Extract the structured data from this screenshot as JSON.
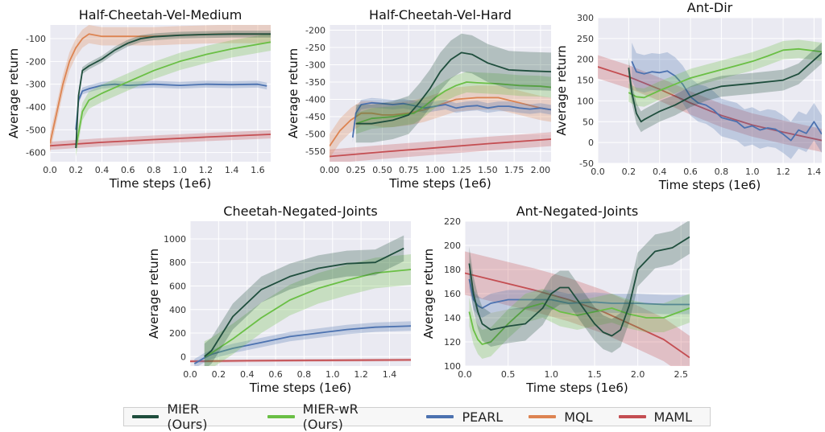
{
  "legend": [
    {
      "label": "MIER (Ours)",
      "color": "#1f4e3d"
    },
    {
      "label": "MIER-wR (Ours)",
      "color": "#6abf45"
    },
    {
      "label": "PEARL",
      "color": "#4c72b0"
    },
    {
      "label": "MQL",
      "color": "#dd8452"
    },
    {
      "label": "MAML",
      "color": "#c44e52"
    }
  ],
  "chart_data": [
    {
      "type": "line",
      "title": "Half-Cheetah-Vel-Medium",
      "xlabel": "Time steps (1e6)",
      "ylabel": "Average return",
      "xlim": [
        0.0,
        1.7
      ],
      "ylim": [
        -640,
        -40
      ],
      "xticks": [
        0.0,
        0.2,
        0.4,
        0.6,
        0.8,
        1.0,
        1.2,
        1.4,
        1.6
      ],
      "xticklabels": [
        "0.0",
        "0.2",
        "0.4",
        "0.6",
        "0.8",
        "1.0",
        "1.2",
        "1.4",
        "1.6"
      ],
      "yticks": [
        -600,
        -500,
        -400,
        -300,
        -200,
        -100
      ],
      "yticklabels": [
        "-600",
        "-500",
        "-400",
        "-300",
        "-200",
        "-100"
      ],
      "grid": true,
      "series": [
        {
          "name": "MAML",
          "color": "#c44e52",
          "x": [
            0.0,
            0.4,
            0.8,
            1.2,
            1.7
          ],
          "y": [
            -570,
            -555,
            -543,
            -532,
            -520
          ],
          "band": 18
        },
        {
          "name": "MQL",
          "color": "#dd8452",
          "x": [
            0.0,
            0.05,
            0.1,
            0.15,
            0.2,
            0.25,
            0.3,
            0.4,
            0.6,
            0.8,
            1.0,
            1.3,
            1.7
          ],
          "y": [
            -560,
            -430,
            -300,
            -200,
            -140,
            -100,
            -80,
            -90,
            -90,
            -90,
            -85,
            -80,
            -80
          ],
          "band": 40
        },
        {
          "name": "PEARL",
          "color": "#4c72b0",
          "x": [
            0.2,
            0.22,
            0.25,
            0.3,
            0.4,
            0.5,
            0.6,
            0.8,
            1.0,
            1.2,
            1.4,
            1.6,
            1.67
          ],
          "y": [
            -500,
            -370,
            -330,
            -320,
            -305,
            -300,
            -305,
            -300,
            -305,
            -300,
            -302,
            -300,
            -308
          ],
          "band": 15
        },
        {
          "name": "MIER-wR (Ours)",
          "color": "#6abf45",
          "x": [
            0.2,
            0.25,
            0.3,
            0.4,
            0.6,
            0.8,
            1.0,
            1.2,
            1.4,
            1.7
          ],
          "y": [
            -580,
            -420,
            -370,
            -340,
            -290,
            -240,
            -200,
            -170,
            -145,
            -115
          ],
          "band": 38
        },
        {
          "name": "MIER (Ours)",
          "color": "#1f4e3d",
          "x": [
            0.2,
            0.22,
            0.25,
            0.3,
            0.4,
            0.5,
            0.6,
            0.7,
            0.8,
            1.0,
            1.2,
            1.4,
            1.7
          ],
          "y": [
            -580,
            -350,
            -240,
            -220,
            -190,
            -150,
            -120,
            -100,
            -92,
            -85,
            -82,
            -80,
            -80
          ],
          "band": 15
        }
      ]
    },
    {
      "type": "line",
      "title": "Half-Cheetah-Vel-Hard",
      "xlabel": "Time steps (1e6)",
      "ylabel": "Average return",
      "xlim": [
        0.0,
        2.1
      ],
      "ylim": [
        -580,
        -185
      ],
      "xticks": [
        0.0,
        0.25,
        0.5,
        0.75,
        1.0,
        1.25,
        1.5,
        1.75,
        2.0
      ],
      "xticklabels": [
        "0.00",
        "0.25",
        "0.50",
        "0.75",
        "1.00",
        "1.25",
        "1.50",
        "1.75",
        "2.00"
      ],
      "yticks": [
        -550,
        -500,
        -450,
        -400,
        -350,
        -300,
        -250,
        -200
      ],
      "yticklabels": [
        "-550",
        "-500",
        "-450",
        "-400",
        "-350",
        "-300",
        "-250",
        "-200"
      ],
      "grid": true,
      "series": [
        {
          "name": "MAML",
          "color": "#c44e52",
          "x": [
            0.0,
            0.5,
            1.0,
            1.5,
            2.1
          ],
          "y": [
            -565,
            -552,
            -540,
            -528,
            -515
          ],
          "band": 20
        },
        {
          "name": "MQL",
          "color": "#dd8452",
          "x": [
            0.0,
            0.1,
            0.2,
            0.3,
            0.4,
            0.5,
            0.6,
            0.75,
            0.9,
            1.0,
            1.2,
            1.4,
            1.6,
            1.8,
            2.0,
            2.1
          ],
          "y": [
            -535,
            -490,
            -460,
            -440,
            -440,
            -445,
            -445,
            -440,
            -430,
            -420,
            -400,
            -395,
            -395,
            -410,
            -425,
            -430
          ],
          "band": 35
        },
        {
          "name": "PEARL",
          "color": "#4c72b0",
          "x": [
            0.22,
            0.25,
            0.3,
            0.4,
            0.5,
            0.6,
            0.7,
            0.8,
            0.9,
            1.0,
            1.1,
            1.2,
            1.3,
            1.4,
            1.5,
            1.6,
            1.7,
            1.8,
            1.9,
            2.0,
            2.1
          ],
          "y": [
            -510,
            -440,
            -415,
            -410,
            -412,
            -415,
            -412,
            -418,
            -425,
            -420,
            -415,
            -425,
            -420,
            -418,
            -425,
            -420,
            -420,
            -425,
            -428,
            -425,
            -430
          ],
          "band": 14
        },
        {
          "name": "MIER-wR (Ours)",
          "color": "#6abf45",
          "x": [
            0.25,
            0.4,
            0.6,
            0.8,
            0.9,
            1.0,
            1.1,
            1.2,
            1.3,
            1.4,
            1.6,
            1.8,
            2.0,
            2.1
          ],
          "y": [
            -470,
            -455,
            -450,
            -440,
            -420,
            -395,
            -375,
            -360,
            -350,
            -352,
            -355,
            -360,
            -362,
            -365
          ],
          "band": 30
        },
        {
          "name": "MIER (Ours)",
          "color": "#1f4e3d",
          "x": [
            0.25,
            0.4,
            0.6,
            0.75,
            0.85,
            0.95,
            1.05,
            1.15,
            1.25,
            1.35,
            1.5,
            1.7,
            1.9,
            2.1
          ],
          "y": [
            -470,
            -470,
            -460,
            -445,
            -410,
            -370,
            -320,
            -285,
            -265,
            -270,
            -295,
            -315,
            -318,
            -320
          ],
          "band": 55
        }
      ]
    },
    {
      "type": "line",
      "title": "Ant-Dir",
      "xlabel": "Time steps (1e6)",
      "ylabel": "Average return",
      "xlim": [
        0.0,
        1.45
      ],
      "ylim": [
        -50,
        300
      ],
      "xticks": [
        0.0,
        0.2,
        0.4,
        0.6,
        0.8,
        1.0,
        1.2,
        1.4
      ],
      "xticklabels": [
        "0.0",
        "0.2",
        "0.4",
        "0.6",
        "0.8",
        "1.0",
        "1.2",
        "1.4"
      ],
      "yticks": [
        -50,
        0,
        50,
        100,
        150,
        200,
        250,
        300
      ],
      "yticklabels": [
        "-50",
        "0",
        "50",
        "100",
        "150",
        "200",
        "250",
        "300"
      ],
      "grid": true,
      "series": [
        {
          "name": "MAML",
          "color": "#c44e52",
          "x": [
            0.0,
            0.2,
            0.4,
            0.6,
            0.8,
            1.0,
            1.2,
            1.45
          ],
          "y": [
            182,
            158,
            128,
            95,
            65,
            42,
            25,
            5
          ],
          "band": 28
        },
        {
          "name": "PEARL",
          "color": "#4c72b0",
          "x": [
            0.22,
            0.25,
            0.3,
            0.35,
            0.4,
            0.45,
            0.5,
            0.55,
            0.6,
            0.65,
            0.7,
            0.75,
            0.8,
            0.85,
            0.9,
            0.95,
            1.0,
            1.05,
            1.1,
            1.15,
            1.2,
            1.25,
            1.3,
            1.35,
            1.4,
            1.45
          ],
          "y": [
            195,
            170,
            165,
            170,
            168,
            172,
            160,
            140,
            110,
            95,
            90,
            78,
            60,
            55,
            50,
            35,
            40,
            30,
            35,
            32,
            20,
            5,
            30,
            22,
            50,
            20
          ],
          "band": 45
        },
        {
          "name": "MIER-wR (Ours)",
          "color": "#6abf45",
          "x": [
            0.2,
            0.25,
            0.3,
            0.4,
            0.5,
            0.6,
            0.7,
            0.8,
            0.9,
            1.0,
            1.1,
            1.2,
            1.3,
            1.45
          ],
          "y": [
            120,
            110,
            108,
            125,
            140,
            155,
            165,
            175,
            185,
            195,
            208,
            222,
            225,
            218
          ],
          "band": 22
        },
        {
          "name": "MIER (Ours)",
          "color": "#1f4e3d",
          "x": [
            0.2,
            0.22,
            0.25,
            0.28,
            0.3,
            0.35,
            0.4,
            0.5,
            0.6,
            0.7,
            0.8,
            1.0,
            1.2,
            1.3,
            1.45
          ],
          "y": [
            180,
            120,
            70,
            50,
            55,
            65,
            75,
            90,
            110,
            125,
            135,
            142,
            150,
            165,
            215
          ],
          "band": 25
        }
      ]
    },
    {
      "type": "line",
      "title": "Cheetah-Negated-Joints",
      "xlabel": "Time steps (1e6)",
      "ylabel": "Average return",
      "xlim": [
        0.0,
        1.55
      ],
      "ylim": [
        -80,
        1150
      ],
      "xticks": [
        0.0,
        0.2,
        0.4,
        0.6,
        0.8,
        1.0,
        1.2,
        1.4
      ],
      "xticklabels": [
        "0.0",
        "0.2",
        "0.4",
        "0.6",
        "0.8",
        "1.0",
        "1.2",
        "1.4"
      ],
      "yticks": [
        0,
        200,
        400,
        600,
        800,
        1000
      ],
      "yticklabels": [
        "0",
        "200",
        "400",
        "600",
        "800",
        "1000"
      ],
      "grid": true,
      "series": [
        {
          "name": "MAML",
          "color": "#c44e52",
          "x": [
            0.0,
            0.4,
            0.8,
            1.2,
            1.55
          ],
          "y": [
            -40,
            -35,
            -32,
            -30,
            -28
          ],
          "band": 12
        },
        {
          "name": "PEARL",
          "color": "#4c72b0",
          "x": [
            0.03,
            0.1,
            0.15,
            0.3,
            0.5,
            0.7,
            0.9,
            1.1,
            1.3,
            1.55
          ],
          "y": [
            -60,
            -10,
            20,
            70,
            120,
            170,
            200,
            230,
            250,
            260
          ],
          "band": 40
        },
        {
          "name": "MIER-wR (Ours)",
          "color": "#6abf45",
          "x": [
            0.1,
            0.15,
            0.3,
            0.5,
            0.7,
            0.9,
            1.1,
            1.3,
            1.55
          ],
          "y": [
            0,
            30,
            150,
            330,
            480,
            580,
            650,
            710,
            740
          ],
          "band": 130
        },
        {
          "name": "MIER (Ours)",
          "color": "#1f4e3d",
          "x": [
            0.1,
            0.15,
            0.3,
            0.5,
            0.7,
            0.9,
            1.1,
            1.3,
            1.5
          ],
          "y": [
            0,
            50,
            340,
            570,
            680,
            750,
            790,
            800,
            920
          ],
          "band": 110
        }
      ]
    },
    {
      "type": "line",
      "title": "Ant-Negated-Joints",
      "xlabel": "Time steps (1e6)",
      "ylabel": "Average return",
      "xlim": [
        0.0,
        2.6
      ],
      "ylim": [
        100,
        220
      ],
      "xticks": [
        0.0,
        0.5,
        1.0,
        1.5,
        2.0,
        2.5
      ],
      "xticklabels": [
        "0.0",
        "0.5",
        "1.0",
        "1.5",
        "2.0",
        "2.5"
      ],
      "yticks": [
        100,
        120,
        140,
        160,
        180,
        200,
        220
      ],
      "yticklabels": [
        "100",
        "120",
        "140",
        "160",
        "180",
        "200",
        "220"
      ],
      "grid": true,
      "series": [
        {
          "name": "MAML",
          "color": "#c44e52",
          "x": [
            0.0,
            0.4,
            0.8,
            1.2,
            1.6,
            2.0,
            2.3,
            2.6
          ],
          "y": [
            177,
            170,
            163,
            155,
            145,
            132,
            122,
            107
          ],
          "band": 18
        },
        {
          "name": "PEARL",
          "color": "#4c72b0",
          "x": [
            0.05,
            0.1,
            0.15,
            0.2,
            0.3,
            0.5,
            0.8,
            1.0,
            1.2,
            1.5,
            1.7,
            2.0,
            2.3,
            2.6
          ],
          "y": [
            172,
            155,
            150,
            148,
            152,
            155,
            155,
            155,
            152,
            153,
            152,
            152,
            151,
            151
          ],
          "band": 8
        },
        {
          "name": "MIER-wR (Ours)",
          "color": "#6abf45",
          "x": [
            0.05,
            0.1,
            0.15,
            0.2,
            0.3,
            0.5,
            0.7,
            0.9,
            1.1,
            1.3,
            1.5,
            1.7,
            1.9,
            2.1,
            2.3,
            2.6
          ],
          "y": [
            145,
            130,
            122,
            118,
            120,
            135,
            148,
            152,
            145,
            142,
            145,
            148,
            143,
            140,
            140,
            148
          ],
          "band": 12
        },
        {
          "name": "MIER (Ours)",
          "color": "#1f4e3d",
          "x": [
            0.05,
            0.1,
            0.15,
            0.2,
            0.3,
            0.5,
            0.7,
            0.9,
            1.0,
            1.1,
            1.2,
            1.4,
            1.5,
            1.6,
            1.7,
            1.8,
            1.9,
            2.0,
            2.2,
            2.4,
            2.6
          ],
          "y": [
            185,
            160,
            145,
            135,
            130,
            133,
            135,
            148,
            160,
            165,
            165,
            145,
            135,
            128,
            125,
            130,
            150,
            180,
            195,
            198,
            207
          ],
          "band": 14
        }
      ]
    }
  ]
}
